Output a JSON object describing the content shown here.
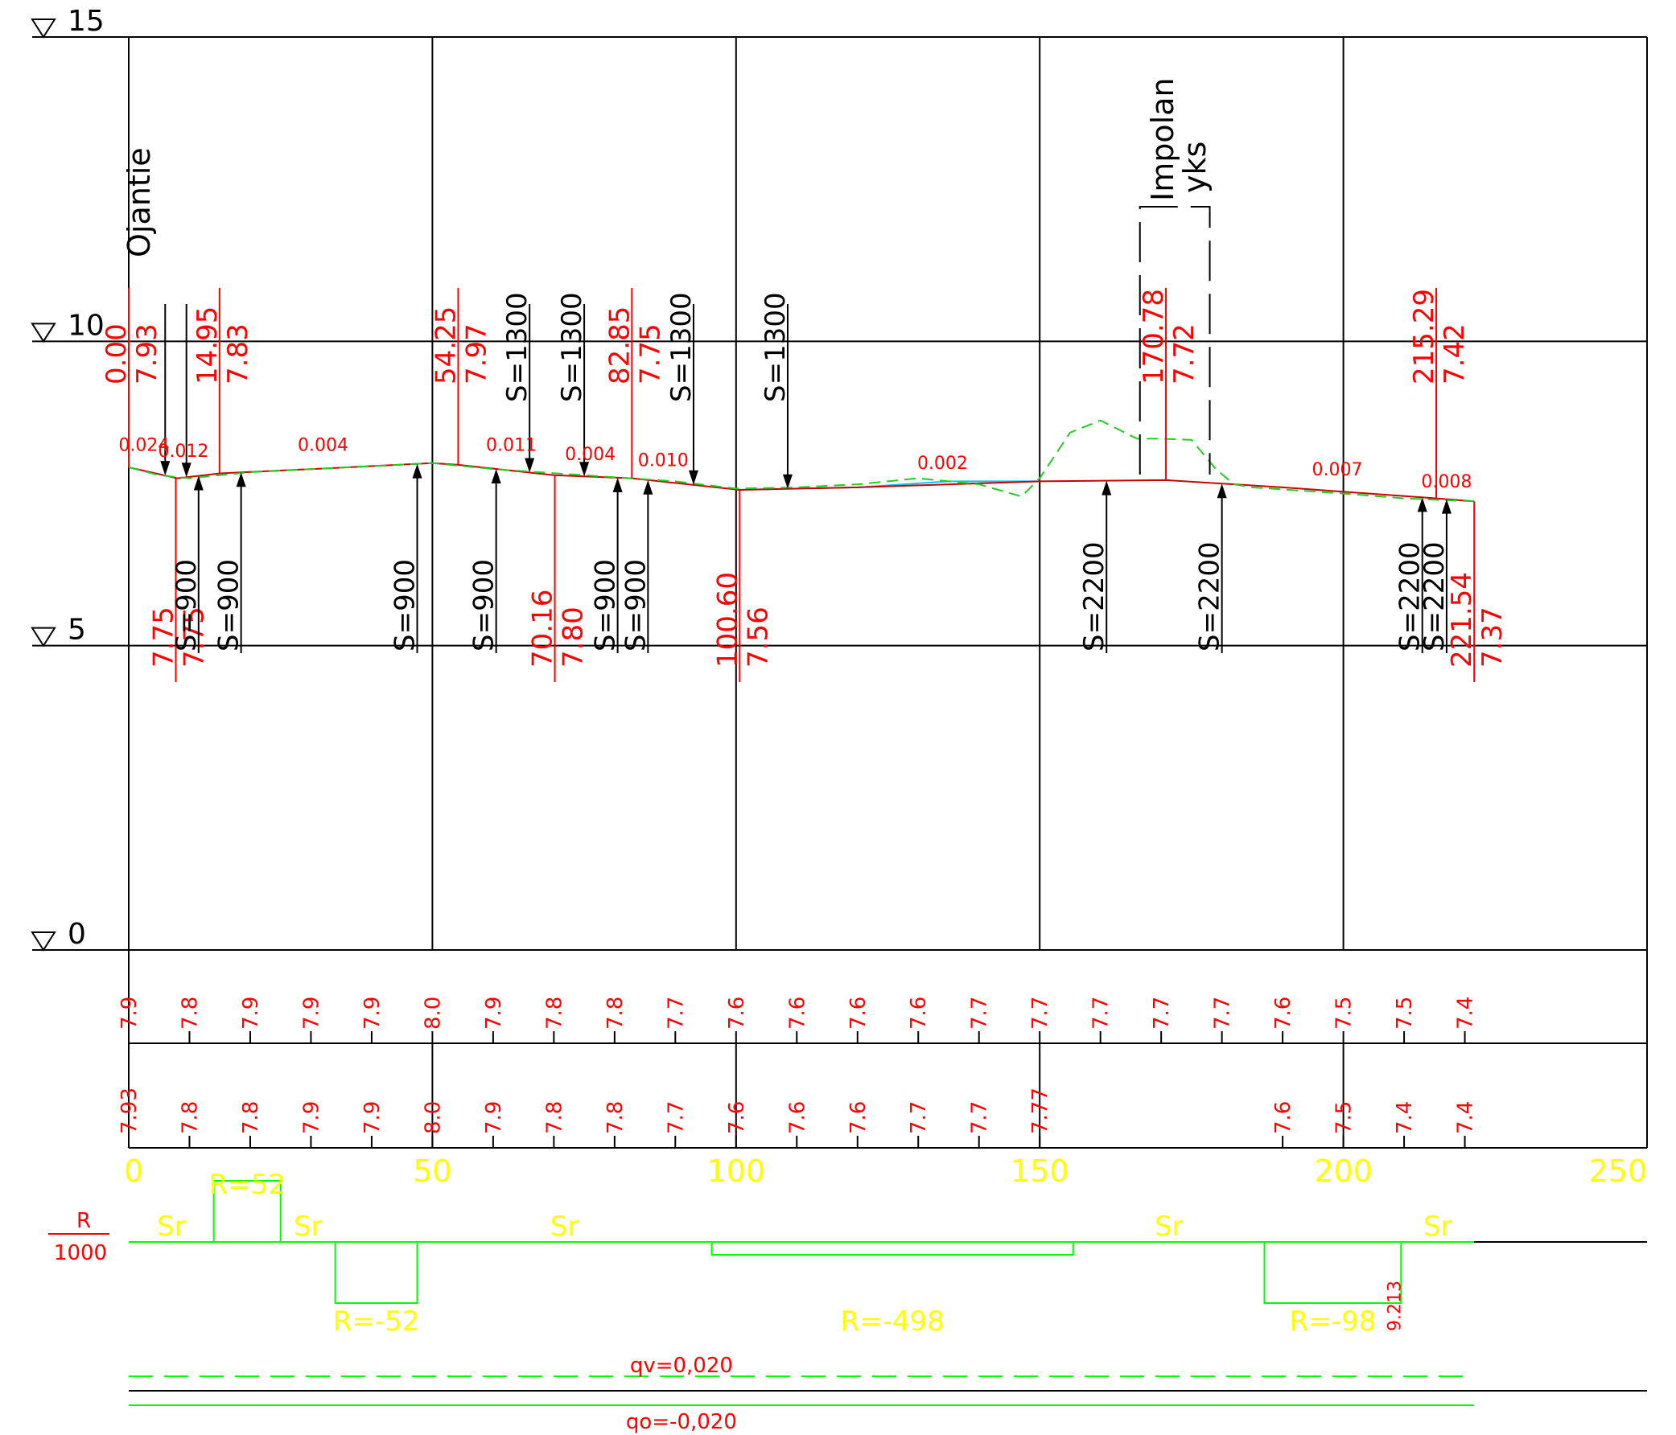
{
  "chart_data": {
    "type": "line",
    "xlim": [
      0,
      250
    ],
    "ylim": [
      0,
      15
    ],
    "x_ticks": [
      "0",
      "50",
      "100",
      "150",
      "200",
      "250"
    ],
    "level_labels": [
      "15",
      "10",
      "5",
      "0"
    ],
    "design_line": {
      "x": [
        0,
        8,
        15,
        30,
        50,
        54.25,
        70,
        82.85,
        100.6,
        120,
        150,
        170.78,
        190,
        215.29,
        221.54
      ],
      "y": [
        7.93,
        7.75,
        7.83,
        7.9,
        8.0,
        7.97,
        7.8,
        7.75,
        7.56,
        7.6,
        7.7,
        7.72,
        7.6,
        7.42,
        7.37
      ]
    },
    "ground_line": {
      "x": [
        0,
        5,
        10,
        20,
        40,
        50,
        60,
        75,
        90,
        100,
        110,
        120,
        130,
        140,
        147,
        150,
        155,
        160,
        163,
        166,
        170,
        175,
        179,
        182,
        185,
        200,
        210,
        221.54
      ],
      "y": [
        7.93,
        7.8,
        7.75,
        7.85,
        7.95,
        8.0,
        7.9,
        7.8,
        7.7,
        7.58,
        7.6,
        7.65,
        7.75,
        7.65,
        7.45,
        7.75,
        8.5,
        8.7,
        8.55,
        8.4,
        8.4,
        8.38,
        7.9,
        7.65,
        7.6,
        7.5,
        7.42,
        7.37
      ]
    },
    "water_line": {
      "x": [
        100,
        120,
        135,
        150
      ],
      "y": [
        7.56,
        7.6,
        7.7,
        7.7
      ]
    },
    "grades": [
      {
        "x": 2.5,
        "y": 8.2,
        "label": "0.024"
      },
      {
        "x": 9,
        "y": 8.1,
        "label": "0.012"
      },
      {
        "x": 32,
        "y": 8.2,
        "label": "0.004"
      },
      {
        "x": 63,
        "y": 8.2,
        "label": "0.011"
      },
      {
        "x": 76,
        "y": 8.05,
        "label": "0.004"
      },
      {
        "x": 88,
        "y": 7.95,
        "label": "0.010"
      },
      {
        "x": 134,
        "y": 7.9,
        "label": "0.002"
      },
      {
        "x": 199,
        "y": 7.8,
        "label": "0.007"
      },
      {
        "x": 217,
        "y": 7.6,
        "label": "0.008"
      }
    ],
    "stations": [
      {
        "x": 0,
        "labels": [
          "0.00",
          "7.93"
        ],
        "dir": "up"
      },
      {
        "x": 14.95,
        "labels": [
          "14.95",
          "7.83"
        ],
        "dir": "up"
      },
      {
        "x": 54.25,
        "labels": [
          "54.25",
          "7.97"
        ],
        "dir": "up"
      },
      {
        "x": 82.85,
        "labels": [
          "82.85",
          "7.75"
        ],
        "dir": "up"
      },
      {
        "x": 170.78,
        "labels": [
          "170.78",
          "7.72"
        ],
        "dir": "up"
      },
      {
        "x": 215.29,
        "labels": [
          "215.29",
          "7.42"
        ],
        "dir": "up"
      },
      {
        "x": 7.75,
        "labels": [
          "7.75",
          "7.75"
        ],
        "dir": "down"
      },
      {
        "x": 70.16,
        "labels": [
          "70.16",
          "7.80"
        ],
        "dir": "down"
      },
      {
        "x": 100.6,
        "labels": [
          "100.60",
          "7.56"
        ],
        "dir": "down"
      },
      {
        "x": 221.54,
        "labels": [
          "221.54",
          "7.37"
        ],
        "dir": "down"
      }
    ],
    "arrows_down": [
      {
        "x": 6,
        "label": ""
      },
      {
        "x": 9.5,
        "label": ""
      },
      {
        "x": 66,
        "label": "S=1300"
      },
      {
        "x": 75,
        "label": "S=1300"
      },
      {
        "x": 93,
        "label": "S=1300"
      },
      {
        "x": 108.5,
        "label": "S=1300"
      }
    ],
    "arrows_up": [
      {
        "x": 11.5,
        "label": "S=900"
      },
      {
        "x": 18.5,
        "label": "S=900"
      },
      {
        "x": 47.5,
        "label": "S=900"
      },
      {
        "x": 60.5,
        "label": "S=900"
      },
      {
        "x": 80.5,
        "label": "S=900"
      },
      {
        "x": 85.5,
        "label": "S=900"
      },
      {
        "x": 161,
        "label": "S=2200"
      },
      {
        "x": 180,
        "label": "S=2200"
      },
      {
        "x": 213,
        "label": "S=2200"
      },
      {
        "x": 217,
        "label": "S=2200"
      }
    ],
    "road_name": "Ojantie",
    "junction_label": [
      "Impolan",
      "yks"
    ],
    "row1_x": [
      0,
      10,
      20,
      30,
      40,
      50,
      60,
      70,
      80,
      90,
      100,
      110,
      120,
      130,
      140,
      150,
      160,
      170,
      180,
      190,
      200,
      210,
      220
    ],
    "row1_values": [
      "7.9",
      "7.8",
      "7.9",
      "7.9",
      "7.9",
      "8.0",
      "7.9",
      "7.8",
      "7.8",
      "7.7",
      "7.6",
      "7.6",
      "7.6",
      "7.6",
      "7.7",
      "7.7",
      "7.7",
      "7.7",
      "7.7",
      "7.6",
      "7.5",
      "7.5",
      "7.4"
    ],
    "row2_x": [
      0,
      10,
      20,
      30,
      40,
      50,
      60,
      70,
      80,
      90,
      100,
      110,
      120,
      130,
      140,
      150,
      190,
      200,
      210,
      220
    ],
    "row2_values": [
      "7.93",
      "7.8",
      "7.8",
      "7.9",
      "7.9",
      "8.0",
      "7.9",
      "7.8",
      "7.8",
      "7.7",
      "7.6",
      "7.6",
      "7.6",
      "7.7",
      "7.7",
      "7.77",
      "7.6",
      "7.5",
      "7.4",
      "7.4"
    ],
    "curvature": {
      "axis_label_top": "R",
      "axis_label_bottom": "1000",
      "segments": [
        {
          "x0": 0,
          "x1": 14,
          "kind": "straight",
          "label": "Sr"
        },
        {
          "x0": 14,
          "x1": 25,
          "kind": "up",
          "label": "R=52"
        },
        {
          "x0": 25,
          "x1": 34,
          "kind": "straight",
          "label": "Sr"
        },
        {
          "x0": 34,
          "x1": 47.5,
          "kind": "down",
          "label": "R=-52"
        },
        {
          "x0": 47.5,
          "x1": 96,
          "kind": "straight",
          "label": "Sr"
        },
        {
          "x0": 96,
          "x1": 155.5,
          "kind": "down-shallow",
          "label": "R=-498"
        },
        {
          "x0": 155.5,
          "x1": 187,
          "kind": "straight",
          "label": "Sr"
        },
        {
          "x0": 187,
          "x1": 209.5,
          "kind": "down",
          "label": "R=-98"
        },
        {
          "x0": 209.5,
          "x1": 221.5,
          "kind": "straight",
          "label": "Sr"
        }
      ],
      "note": "9.213"
    },
    "cross_slope_top": "qv=0,020",
    "cross_slope_bottom": "qo=-0,020"
  }
}
